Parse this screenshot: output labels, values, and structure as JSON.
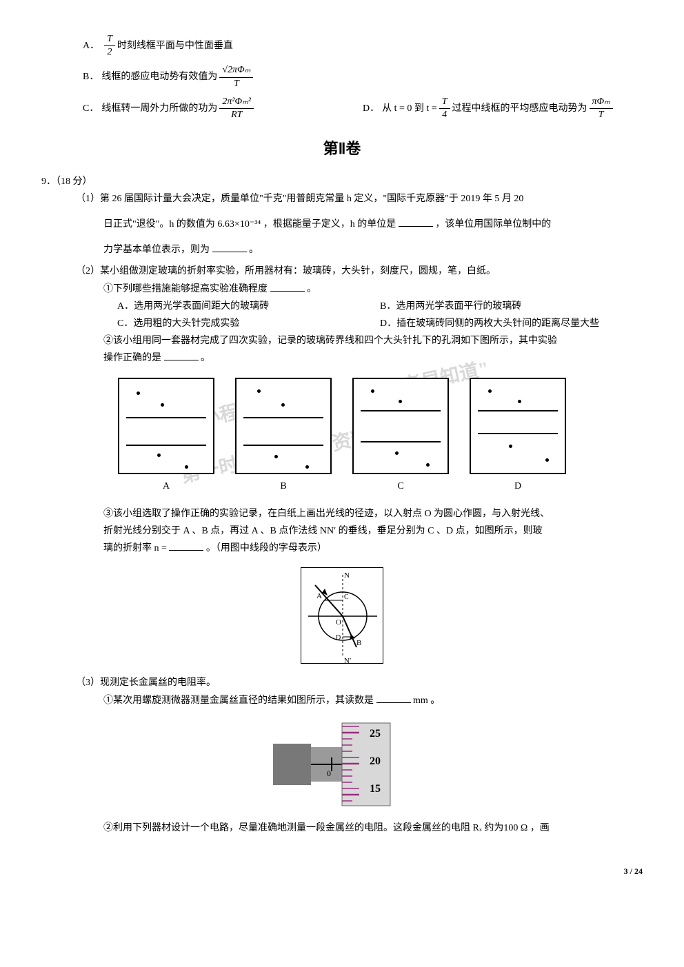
{
  "q8": {
    "optA": {
      "label": "A．",
      "pre": "",
      "frac_num": "T",
      "frac_den": "2",
      "post": "时刻线框平面与中性面垂直"
    },
    "optB": {
      "label": "B．",
      "pre": "线框的感应电动势有效值为",
      "frac_num": "√2πΦₘ",
      "frac_den": "T"
    },
    "optC": {
      "label": "C．",
      "pre": "线框转一周外力所做的功为",
      "frac_num": "2π²Φₘ²",
      "frac_den": "RT"
    },
    "optD": {
      "label": "D．",
      "pre": "从 t = 0 到 t = ",
      "mid_num": "T",
      "mid_den": "4",
      "post1": " 过程中线框的平均感应电动势为",
      "frac_num": "πΦₘ",
      "frac_den": "T"
    }
  },
  "section2_title": "第Ⅱ卷",
  "q9": {
    "header": "9．（18 分）",
    "p1_line1": "（1）第 26 届国际计量大会决定，质量单位\"千克\"用普朗克常量 h 定义，\"国际千克原器\"于 2019 年 5 月 20",
    "p1_line2_a": "日正式\"退役\"。h 的数值为 6.63×10⁻³⁴ ，根据能量子定义，h 的单位是",
    "p1_line2_b": "，该单位用国际单位制中的",
    "p1_line3_a": "力学基本单位表示，则为",
    "p1_line3_b": "。",
    "p2_intro": "（2）某小组做测定玻璃的折射率实验，所用器材有：玻璃砖，大头针，刻度尺，圆规，笔，白纸。",
    "p2_sub1_a": "①下列哪些措施能够提高实验准确程度",
    "p2_sub1_b": "。",
    "p2_optA": "A．选用两光学表面间距大的玻璃砖",
    "p2_optB": "B．选用两光学表面平行的玻璃砖",
    "p2_optC": "C．选用粗的大头针完成实验",
    "p2_optD": "D．插在玻璃砖同侧的两枚大头针间的距离尽量大些",
    "p2_sub2_a": "②该小组用同一套器材完成了四次实验，记录的玻璃砖界线和四个大头针扎下的孔洞如下图所示，其中实验",
    "p2_sub2_b": "操作正确的是",
    "p2_sub2_c": "。",
    "diag_labels": {
      "a": "A",
      "b": "B",
      "c": "C",
      "d": "D"
    },
    "p2_sub3_l1": "③该小组选取了操作正确的实验记录，在白纸上画出光线的径迹，以入射点 O 为圆心作圆，与入射光线、",
    "p2_sub3_l2": "折射光线分别交于 A 、B 点，再过 A 、B 点作法线 NN′ 的垂线，垂足分别为 C 、D 点，如图所示，则玻",
    "p2_sub3_l3_a": "璃的折射率 n = ",
    "p2_sub3_l3_b": "。（用图中线段的字母表示）",
    "refraction_labels": {
      "N": "N",
      "Np": "N′",
      "A": "A",
      "B": "B",
      "C": "C",
      "D": "D",
      "O": "O"
    },
    "p3_intro": "（3）现测定长金属丝的电阻率。",
    "p3_sub1_a": "①某次用螺旋测微器测量金属丝直径的结果如图所示，其读数是",
    "p3_sub1_b": " mm 。",
    "micrometer": {
      "ticks": [
        "25",
        "20",
        "15"
      ],
      "main_visible": "0",
      "thimble_bg": "#d8d8d8",
      "sleeve_bg": "#9a9a9a",
      "body_bg": "#787878",
      "tick_color": "#9b2d7d"
    },
    "p3_sub2": "②利用下列器材设计一个电路，尽量准确地测量一段金属丝的电阻。这段金属丝的电阻 Rₓ 约为100 Ω ，画"
  },
  "diagrams": {
    "A": {
      "hlines": [
        55,
        95
      ],
      "dots": [
        [
          25,
          18
        ],
        [
          60,
          35
        ],
        [
          55,
          108
        ],
        [
          95,
          125
        ]
      ]
    },
    "B": {
      "hlines": [
        55,
        95
      ],
      "dots": [
        [
          30,
          15
        ],
        [
          65,
          35
        ],
        [
          55,
          110
        ],
        [
          100,
          125
        ]
      ]
    },
    "C": {
      "hlines": [
        45,
        90
      ],
      "dots": [
        [
          25,
          15
        ],
        [
          65,
          30
        ],
        [
          60,
          105
        ],
        [
          105,
          122
        ]
      ]
    },
    "D": {
      "hlines": [
        45,
        78
      ],
      "dots": [
        [
          25,
          15
        ],
        [
          68,
          30
        ],
        [
          55,
          95
        ],
        [
          108,
          115
        ]
      ]
    }
  },
  "watermarks": {
    "w1": "\"高考早知道\"",
    "w2": "微信搜索小程序",
    "w3": "第一时间获取最新资料"
  },
  "footer": "3 / 24",
  "colors": {
    "text": "#000000",
    "bg": "#ffffff",
    "watermark": "rgba(100,100,100,0.25)"
  }
}
